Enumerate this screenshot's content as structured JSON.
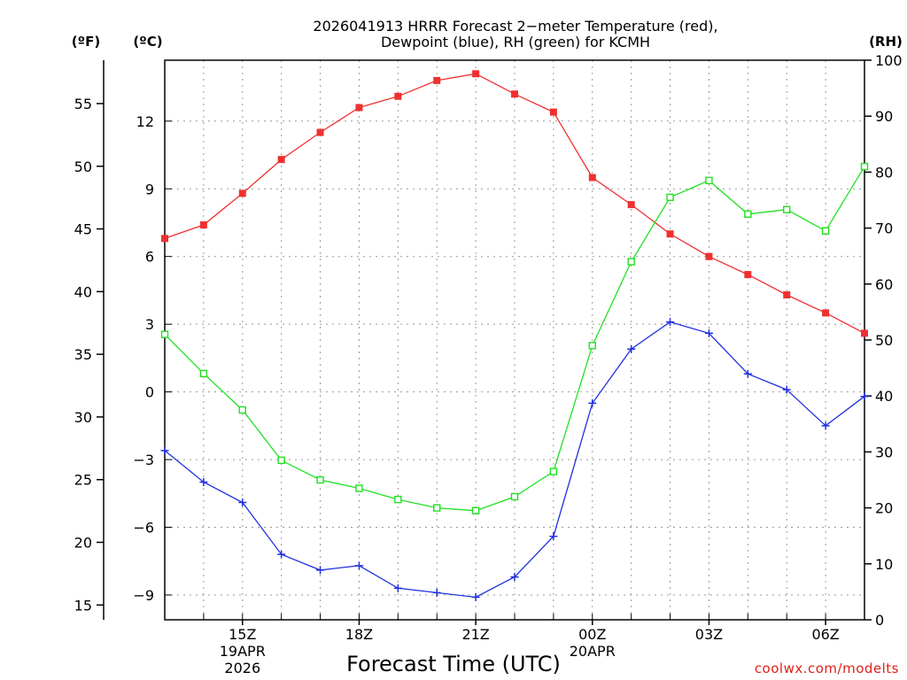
{
  "chart_data": {
    "type": "line",
    "title_line1": "2026041913 HRRR Forecast 2−meter Temperature (red),",
    "title_line2": "Dewpoint (blue), RH (green) for KCMH",
    "xlabel": "Forecast Time (UTC)",
    "credit": "coolwx.com/modelts",
    "units": {
      "fahrenheit": "(ºF)",
      "celsius": "(ºC)",
      "rh": "(RH)"
    },
    "hours_utc": [
      13,
      14,
      15,
      16,
      17,
      18,
      19,
      20,
      21,
      22,
      23,
      0,
      1,
      2,
      3,
      4,
      5,
      6,
      7
    ],
    "x_ticks": [
      {
        "index": 2,
        "label": "15Z",
        "sub1": "19APR",
        "sub2": "2026"
      },
      {
        "index": 5,
        "label": "18Z",
        "sub1": "",
        "sub2": ""
      },
      {
        "index": 8,
        "label": "21Z",
        "sub1": "",
        "sub2": ""
      },
      {
        "index": 11,
        "label": "00Z",
        "sub1": "20APR",
        "sub2": ""
      },
      {
        "index": 14,
        "label": "03Z",
        "sub1": "",
        "sub2": ""
      },
      {
        "index": 17,
        "label": "06Z",
        "sub1": "",
        "sub2": ""
      }
    ],
    "y_celsius": {
      "min": -10.1,
      "max": 14.7,
      "ticks": [
        -9,
        -6,
        -3,
        0,
        3,
        6,
        9,
        12
      ],
      "tick_labels": [
        "−9",
        "−6",
        "−3",
        "0",
        "3",
        "6",
        "9",
        "12"
      ]
    },
    "y_fahrenheit": {
      "ticks": [
        15,
        20,
        25,
        30,
        35,
        40,
        45,
        50,
        55
      ]
    },
    "y_rh": {
      "min": 0,
      "max": 100,
      "ticks": [
        0,
        10,
        20,
        30,
        40,
        50,
        60,
        70,
        80,
        90,
        100
      ]
    },
    "series": [
      {
        "name": "Temperature",
        "units": "C",
        "color": "#f03030",
        "marker": "filled-square",
        "values": [
          6.8,
          7.4,
          8.8,
          10.3,
          11.5,
          12.6,
          13.1,
          13.8,
          14.1,
          13.2,
          12.4,
          9.5,
          8.3,
          7.0,
          6.0,
          5.2,
          4.3,
          3.5,
          2.6
        ]
      },
      {
        "name": "Dewpoint",
        "units": "C",
        "color": "#2030e0",
        "marker": "plus",
        "values": [
          -2.6,
          -4.0,
          -4.9,
          -7.2,
          -7.9,
          -7.7,
          -8.7,
          -8.9,
          -9.1,
          -8.2,
          -6.4,
          -0.5,
          1.9,
          3.1,
          2.6,
          0.8,
          0.1,
          -1.5,
          -0.2
        ]
      },
      {
        "name": "RH",
        "units": "%",
        "color": "#20e020",
        "marker": "open-square",
        "values": [
          51,
          44,
          37.5,
          28.5,
          25,
          23.5,
          21.5,
          20,
          19.5,
          22,
          26.5,
          49,
          64,
          75.5,
          78.5,
          72.5,
          73.3,
          69.5,
          81
        ]
      }
    ]
  }
}
